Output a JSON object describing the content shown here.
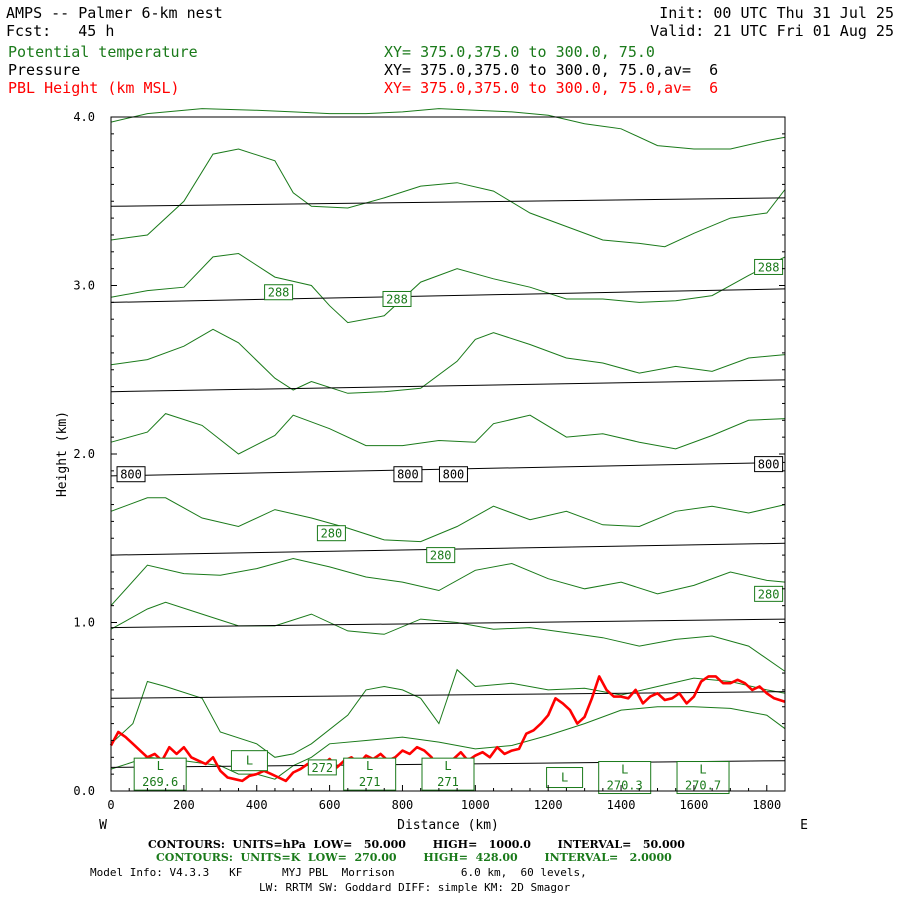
{
  "header": {
    "title": "AMPS -- Palmer 6-km nest",
    "fcst": "Fcst:   45 h",
    "init": "Init: 00 UTC Thu 31 Jul 25",
    "valid": "Valid: 21 UTC Fri 01 Aug 25",
    "fields": [
      {
        "name": "Potential temperature",
        "xy": "XY= 375.0,375.0 to 300.0, 75.0",
        "color": "#1a7a1a"
      },
      {
        "name": "Pressure",
        "xy": "XY= 375.0,375.0 to 300.0, 75.0,av=  6",
        "color": "#000000"
      },
      {
        "name": "PBL Height (km MSL)",
        "xy": "XY= 375.0,375.0 to 300.0, 75.0,av=  6",
        "color": "#ff0000"
      }
    ]
  },
  "footer": {
    "pressure_contours": "CONTOURS:  UNITS=hPa  LOW=   50.000       HIGH=   1000.0       INTERVAL=   50.000",
    "theta_contours": "CONTOURS:  UNITS=K  LOW=  270.00       HIGH=  428.00       INTERVAL=   2.0000",
    "model_info_1": "Model Info: V4.3.3   KF      MYJ PBL  Morrison          6.0 km,  60 levels,",
    "model_info_2": "LW: RRTM SW: Goddard DIFF: simple KM: 2D Smagor"
  },
  "colors": {
    "theta": "#1a7a1a",
    "pressure": "#000000",
    "pbl": "#ff0000"
  },
  "chart_data": {
    "type": "line",
    "xlabel": "Distance (km)",
    "ylabel": "Height (km)",
    "xlim": [
      0,
      1850
    ],
    "ylim": [
      0,
      4.0
    ],
    "x_ticks": [
      0,
      200,
      400,
      600,
      800,
      1000,
      1200,
      1400,
      1600,
      1800
    ],
    "y_ticks": [
      0.0,
      1.0,
      2.0,
      3.0,
      4.0
    ],
    "y_tick_labels": [
      "0.0",
      "1.0",
      "2.0",
      "3.0",
      "4.0"
    ],
    "end_labels": {
      "left": "W",
      "right": "E"
    },
    "pressure_isobars": [
      {
        "x": [
          0,
          1850
        ],
        "y": [
          3.47,
          3.52
        ]
      },
      {
        "x": [
          0,
          1850
        ],
        "y": [
          2.9,
          2.98
        ]
      },
      {
        "x": [
          0,
          1850
        ],
        "y": [
          2.37,
          2.44
        ]
      },
      {
        "x": [
          0,
          1850
        ],
        "y": [
          1.87,
          1.95
        ]
      },
      {
        "x": [
          0,
          1850
        ],
        "y": [
          1.4,
          1.47
        ]
      },
      {
        "x": [
          0,
          1850
        ],
        "y": [
          0.97,
          1.02
        ]
      },
      {
        "x": [
          0,
          1850
        ],
        "y": [
          0.55,
          0.59
        ]
      },
      {
        "x": [
          0,
          1850
        ],
        "y": [
          0.14,
          0.18
        ]
      }
    ],
    "pressure_labels": [
      {
        "text": "800",
        "x": 55,
        "y": 1.88
      },
      {
        "text": "800",
        "x": 815,
        "y": 1.88
      },
      {
        "text": "800",
        "x": 940,
        "y": 1.88
      },
      {
        "text": "800",
        "x": 1805,
        "y": 1.94
      }
    ],
    "theta_isentropes": [
      {
        "x": [
          0,
          100,
          250,
          400,
          500,
          600,
          700,
          800,
          900,
          1000,
          1100,
          1200,
          1300,
          1400,
          1500,
          1600,
          1700,
          1800,
          1850
        ],
        "y": [
          3.97,
          4.02,
          4.05,
          4.04,
          4.03,
          4.02,
          4.02,
          4.03,
          4.05,
          4.04,
          4.03,
          4.01,
          3.96,
          3.93,
          3.83,
          3.81,
          3.81,
          3.86,
          3.88
        ]
      },
      {
        "x": [
          0,
          100,
          200,
          280,
          350,
          450,
          500,
          550,
          650,
          750,
          850,
          950,
          1050,
          1150,
          1250,
          1350,
          1450,
          1520,
          1600,
          1700,
          1800,
          1850
        ],
        "y": [
          3.27,
          3.3,
          3.5,
          3.78,
          3.81,
          3.74,
          3.55,
          3.47,
          3.46,
          3.52,
          3.59,
          3.61,
          3.56,
          3.43,
          3.35,
          3.27,
          3.25,
          3.23,
          3.31,
          3.4,
          3.43,
          3.57
        ]
      },
      {
        "x": [
          0,
          100,
          200,
          280,
          350,
          450,
          550,
          600,
          650,
          750,
          850,
          950,
          1050,
          1150,
          1250,
          1350,
          1450,
          1550,
          1650,
          1750,
          1850
        ],
        "y": [
          2.93,
          2.97,
          2.99,
          3.17,
          3.19,
          3.05,
          3.0,
          2.88,
          2.78,
          2.82,
          3.02,
          3.1,
          3.04,
          2.99,
          2.92,
          2.92,
          2.9,
          2.91,
          2.94,
          3.06,
          3.17
        ]
      },
      {
        "x": [
          0,
          100,
          200,
          280,
          350,
          450,
          500,
          550,
          650,
          750,
          850,
          950,
          1000,
          1050,
          1150,
          1250,
          1350,
          1450,
          1550,
          1650,
          1750,
          1850
        ],
        "y": [
          2.53,
          2.56,
          2.64,
          2.74,
          2.66,
          2.45,
          2.38,
          2.43,
          2.36,
          2.37,
          2.39,
          2.55,
          2.68,
          2.72,
          2.65,
          2.57,
          2.54,
          2.48,
          2.52,
          2.49,
          2.57,
          2.59
        ]
      },
      {
        "x": [
          0,
          100,
          150,
          250,
          350,
          450,
          500,
          600,
          700,
          800,
          900,
          1000,
          1050,
          1150,
          1250,
          1350,
          1450,
          1550,
          1650,
          1750,
          1850
        ],
        "y": [
          2.07,
          2.13,
          2.24,
          2.17,
          2.0,
          2.11,
          2.23,
          2.15,
          2.05,
          2.05,
          2.08,
          2.07,
          2.18,
          2.23,
          2.1,
          2.12,
          2.07,
          2.03,
          2.11,
          2.2,
          2.21
        ]
      },
      {
        "x": [
          0,
          100,
          150,
          250,
          350,
          450,
          550,
          650,
          750,
          850,
          950,
          1050,
          1150,
          1250,
          1350,
          1450,
          1550,
          1650,
          1750,
          1850
        ],
        "y": [
          1.66,
          1.74,
          1.74,
          1.62,
          1.57,
          1.67,
          1.62,
          1.56,
          1.49,
          1.48,
          1.57,
          1.69,
          1.61,
          1.66,
          1.58,
          1.57,
          1.66,
          1.69,
          1.65,
          1.7
        ]
      },
      {
        "x": [
          0,
          100,
          200,
          300,
          400,
          500,
          600,
          700,
          800,
          900,
          1000,
          1100,
          1200,
          1300,
          1400,
          1500,
          1600,
          1700,
          1800,
          1850
        ],
        "y": [
          1.1,
          1.34,
          1.29,
          1.28,
          1.32,
          1.38,
          1.33,
          1.27,
          1.24,
          1.19,
          1.31,
          1.35,
          1.26,
          1.2,
          1.24,
          1.17,
          1.22,
          1.3,
          1.25,
          1.24
        ]
      },
      {
        "x": [
          0,
          100,
          150,
          250,
          350,
          450,
          550,
          650,
          750,
          850,
          950,
          1050,
          1150,
          1250,
          1350,
          1450,
          1550,
          1650,
          1750,
          1850
        ],
        "y": [
          0.96,
          1.08,
          1.12,
          1.05,
          0.98,
          0.98,
          1.05,
          0.95,
          0.93,
          1.02,
          1.0,
          0.96,
          0.97,
          0.94,
          0.91,
          0.86,
          0.9,
          0.92,
          0.86,
          0.71
        ]
      },
      {
        "x": [
          0,
          60,
          100,
          150,
          250,
          300,
          400,
          450,
          500,
          550,
          650,
          700,
          750,
          800,
          850,
          900,
          950,
          1000,
          1100,
          1200,
          1300,
          1400,
          1500,
          1600,
          1700,
          1800,
          1850
        ],
        "y": [
          0.28,
          0.4,
          0.65,
          0.62,
          0.55,
          0.35,
          0.28,
          0.2,
          0.22,
          0.28,
          0.45,
          0.6,
          0.62,
          0.6,
          0.55,
          0.4,
          0.72,
          0.62,
          0.64,
          0.6,
          0.61,
          0.57,
          0.62,
          0.67,
          0.65,
          0.6,
          0.58
        ]
      },
      {
        "x": [
          0,
          100,
          200,
          300,
          350,
          400,
          450,
          500,
          550,
          600,
          700,
          800,
          900,
          1000,
          1100,
          1200,
          1300,
          1400,
          1500,
          1600,
          1700,
          1800,
          1850
        ],
        "y": [
          0.13,
          0.2,
          0.18,
          0.15,
          0.1,
          0.1,
          0.07,
          0.15,
          0.2,
          0.28,
          0.3,
          0.32,
          0.29,
          0.25,
          0.27,
          0.33,
          0.4,
          0.48,
          0.5,
          0.5,
          0.49,
          0.45,
          0.37
        ]
      }
    ],
    "theta_labels": [
      {
        "text": "288",
        "x": 460,
        "y": 2.96
      },
      {
        "text": "288",
        "x": 785,
        "y": 2.92
      },
      {
        "text": "288",
        "x": 1805,
        "y": 3.11
      },
      {
        "text": "280",
        "x": 605,
        "y": 1.53
      },
      {
        "text": "280",
        "x": 905,
        "y": 1.4
      },
      {
        "text": "280",
        "x": 1805,
        "y": 1.17
      },
      {
        "text": "L 269.6",
        "x": 135,
        "y": 0.1
      },
      {
        "text": "L",
        "x": 380,
        "y": 0.18
      },
      {
        "text": "272",
        "x": 580,
        "y": 0.14
      },
      {
        "text": "L 271",
        "x": 710,
        "y": 0.1
      },
      {
        "text": "L 271",
        "x": 925,
        "y": 0.1
      },
      {
        "text": "L",
        "x": 1245,
        "y": 0.08
      },
      {
        "text": "L 270.3",
        "x": 1410,
        "y": 0.08
      },
      {
        "text": "L 270.7",
        "x": 1625,
        "y": 0.08
      }
    ],
    "pbl_height": {
      "x": [
        0,
        20,
        40,
        60,
        80,
        100,
        120,
        140,
        160,
        180,
        200,
        220,
        240,
        260,
        280,
        300,
        320,
        340,
        360,
        380,
        400,
        420,
        440,
        460,
        480,
        500,
        520,
        540,
        560,
        580,
        600,
        620,
        640,
        660,
        680,
        700,
        720,
        740,
        760,
        780,
        800,
        820,
        840,
        860,
        880,
        900,
        920,
        940,
        960,
        980,
        1000,
        1020,
        1040,
        1060,
        1080,
        1100,
        1120,
        1140,
        1160,
        1180,
        1200,
        1220,
        1240,
        1260,
        1280,
        1300,
        1320,
        1340,
        1360,
        1380,
        1400,
        1420,
        1440,
        1460,
        1480,
        1500,
        1520,
        1540,
        1560,
        1580,
        1600,
        1620,
        1640,
        1660,
        1680,
        1700,
        1720,
        1740,
        1760,
        1780,
        1800,
        1820,
        1850
      ],
      "y": [
        0.27,
        0.35,
        0.32,
        0.28,
        0.24,
        0.2,
        0.22,
        0.18,
        0.26,
        0.22,
        0.26,
        0.2,
        0.18,
        0.16,
        0.2,
        0.12,
        0.08,
        0.07,
        0.06,
        0.09,
        0.1,
        0.12,
        0.1,
        0.08,
        0.06,
        0.11,
        0.13,
        0.16,
        0.12,
        0.15,
        0.19,
        0.14,
        0.18,
        0.2,
        0.16,
        0.21,
        0.19,
        0.22,
        0.18,
        0.2,
        0.24,
        0.22,
        0.26,
        0.24,
        0.2,
        0.1,
        0.16,
        0.19,
        0.23,
        0.18,
        0.21,
        0.23,
        0.2,
        0.26,
        0.22,
        0.24,
        0.25,
        0.34,
        0.36,
        0.4,
        0.45,
        0.55,
        0.52,
        0.48,
        0.4,
        0.44,
        0.55,
        0.68,
        0.6,
        0.56,
        0.56,
        0.55,
        0.6,
        0.52,
        0.56,
        0.58,
        0.54,
        0.55,
        0.58,
        0.52,
        0.56,
        0.65,
        0.68,
        0.68,
        0.64,
        0.64,
        0.66,
        0.64,
        0.6,
        0.62,
        0.58,
        0.55,
        0.53
      ]
    }
  }
}
